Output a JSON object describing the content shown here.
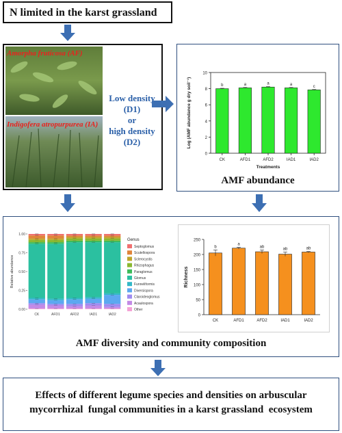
{
  "top_box": {
    "title": "N limited in the karst grassland"
  },
  "photo_panel": {
    "label_af": "Amorpha fruticosa (AF)",
    "label_ia": "Indigofera atropurpurea (IA)"
  },
  "density_text": {
    "line1": "Low density",
    "line2": "(D1)",
    "line3": "or",
    "line4": "high density",
    "line5": "(D2)"
  },
  "abundance_box": {
    "caption": "AMF abundance"
  },
  "diversity_box": {
    "caption": "AMF diversity and community composition"
  },
  "bottom_box": {
    "line1": "Effects of different legume species and densities on arbuscular",
    "line2": "mycorrhizal  fungal communities in a karst grassland  ecosystem"
  },
  "colors": {
    "arrow": "#3d6fb3",
    "green_bar": "#2ee82e",
    "orange_bar": "#f5901e",
    "box_border": "#2e4e7e"
  },
  "chart_data": [
    {
      "type": "bar",
      "categories": [
        "CK",
        "AFD1",
        "AFD2",
        "IAD1",
        "IAD2"
      ],
      "values": [
        8.0,
        8.1,
        8.2,
        8.1,
        7.85
      ],
      "errors": [
        0.05,
        0.05,
        0.05,
        0.05,
        0.05
      ],
      "letters": [
        "b",
        "a",
        "a",
        "a",
        "c"
      ],
      "xlabel": "Treatments",
      "ylabel": "Log (AMF abundance g dry soil⁻¹)",
      "ylim": [
        0,
        10
      ],
      "yticks": [
        "0",
        "2",
        "4",
        "6",
        "8",
        "10"
      ]
    },
    {
      "type": "bar",
      "stacked": true,
      "categories": [
        "CK",
        "AFD1",
        "AFD2",
        "IAD1",
        "IAD2"
      ],
      "ylabel": "Relative abundance",
      "ylim": [
        0,
        1.0
      ],
      "yticks": [
        "0.00",
        "0.25",
        "0.50",
        "0.75",
        "1.00"
      ],
      "legend_title": "Genus",
      "series": [
        {
          "name": "Other",
          "color": "#f4a3d6",
          "values": [
            0.01,
            0.01,
            0.01,
            0.01,
            0.01
          ]
        },
        {
          "name": "Acaulospora",
          "color": "#c38ae6",
          "values": [
            0.05,
            0.04,
            0.03,
            0.04,
            0.02
          ]
        },
        {
          "name": "Claroideoglomus",
          "color": "#9f8bf0",
          "values": [
            0.02,
            0.02,
            0.03,
            0.03,
            0.04
          ]
        },
        {
          "name": "Diversispora",
          "color": "#5ca8f0",
          "values": [
            0.05,
            0.05,
            0.06,
            0.06,
            0.12
          ]
        },
        {
          "name": "Funneliformis",
          "color": "#32b8c8",
          "values": [
            0.02,
            0.02,
            0.02,
            0.02,
            0.02
          ]
        },
        {
          "name": "Glomus",
          "color": "#2bc0a0",
          "values": [
            0.72,
            0.73,
            0.74,
            0.73,
            0.68
          ]
        },
        {
          "name": "Paraglomus",
          "color": "#3dbb5a",
          "values": [
            0.02,
            0.02,
            0.02,
            0.02,
            0.02
          ]
        },
        {
          "name": "Rhizophagus",
          "color": "#8ab830",
          "values": [
            0.03,
            0.03,
            0.03,
            0.03,
            0.03
          ]
        },
        {
          "name": "Sclerocystis",
          "color": "#c0a52a",
          "values": [
            0.02,
            0.02,
            0.02,
            0.02,
            0.02
          ]
        },
        {
          "name": "Scutellospora",
          "color": "#e0853a",
          "values": [
            0.04,
            0.04,
            0.02,
            0.02,
            0.02
          ]
        },
        {
          "name": "Septoglomus",
          "color": "#f07070",
          "values": [
            0.02,
            0.02,
            0.02,
            0.02,
            0.02
          ]
        }
      ]
    },
    {
      "type": "bar",
      "categories": [
        "CK",
        "AFD1",
        "AFD2",
        "IAD1",
        "IAD2"
      ],
      "values": [
        205,
        221,
        209,
        201,
        208
      ],
      "errors": [
        10,
        3,
        6,
        7,
        2
      ],
      "letters": [
        "b",
        "a",
        "ab",
        "ab",
        "ab"
      ],
      "ylabel": "Richness",
      "ylim": [
        0,
        250
      ],
      "yticks": [
        "0",
        "50",
        "100",
        "150",
        "200",
        "250"
      ]
    }
  ]
}
